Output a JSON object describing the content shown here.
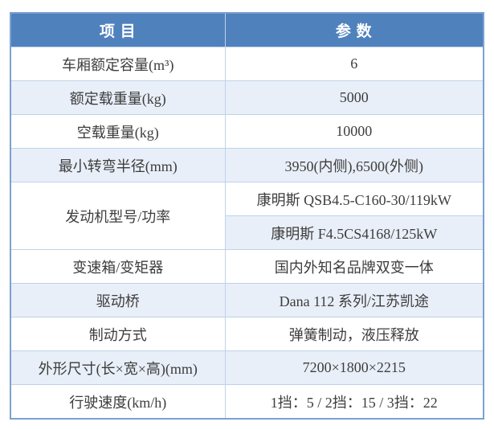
{
  "table": {
    "title_semantic": "vehicle-specification-table",
    "colors": {
      "header_bg": "#4f81bd",
      "header_text": "#ffffff",
      "alt_row_bg": "#e9eff8",
      "inner_border": "#bfd2e9",
      "outer_border": "#7ba1cf",
      "body_text": "#3d3d3d"
    },
    "header": {
      "col_item": "项 目",
      "col_param": "参 数"
    },
    "rows": [
      {
        "item": "车厢额定容量(m³)",
        "param": "6"
      },
      {
        "item": "额定载重量(kg)",
        "param": "5000"
      },
      {
        "item": "空载重量(kg)",
        "param": "10000"
      },
      {
        "item": "最小转弯半径(mm)",
        "param": "3950(内侧),6500(外侧)"
      },
      {
        "item": "发动机型号/功率",
        "param": "康明斯 QSB4.5-C160-30/119kW",
        "param2": "康明斯 F4.5CS4168/125kW"
      },
      {
        "item": "变速箱/变矩器",
        "param": "国内外知名品牌双变一体"
      },
      {
        "item": "驱动桥",
        "param": "Dana 112 系列/江苏凯途"
      },
      {
        "item": "制动方式",
        "param": "弹簧制动，液压释放"
      },
      {
        "item": "外形尺寸(长×宽×高)(mm)",
        "param": "7200×1800×2215"
      },
      {
        "item": "行驶速度(km/h)",
        "param": "1挡：5 / 2挡：15 / 3挡：22"
      }
    ]
  }
}
